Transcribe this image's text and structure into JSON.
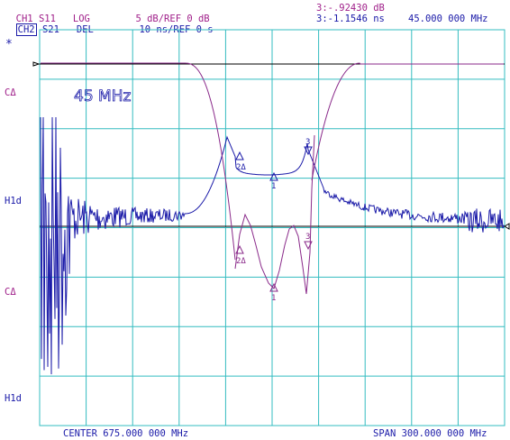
{
  "header": {
    "ch1_label": "CH1",
    "ch1_param": "S11",
    "ch1_format": "LOG",
    "ch1_scale": "5 dB/",
    "ch1_ref": "REF 0 dB",
    "ch2_label": "CH2",
    "ch2_param": "S21",
    "ch2_format": "DEL",
    "ch2_scale": "10 ns/",
    "ch2_ref": "REF 0 s",
    "ch1_marker_readout": "3:-.92430 dB",
    "ch2_marker_readout": "3:-1.1546 ns",
    "marker_freq": "45.000 000 MHz"
  },
  "side_labels": {
    "star": "*",
    "top_ca": "CΔ",
    "top_hld": "H1d",
    "bottom_ca": "CΔ",
    "bottom_hld": "H1d"
  },
  "annotation": "45 MHz",
  "footer": {
    "center": "CENTER 675.000 000 MHz",
    "span": "SPAN 300.000 000 MHz"
  },
  "markers": {
    "m1": "1",
    "m2": "2Δ",
    "m3": "3"
  },
  "colors": {
    "ch1_trace": "#8a2a8a",
    "ch2_trace": "#1a1aa8",
    "grid": "#33bcc0",
    "ref_line": "#000000",
    "ch1_text": "#a0208a",
    "ch2_text": "#1a1aa8"
  }
}
